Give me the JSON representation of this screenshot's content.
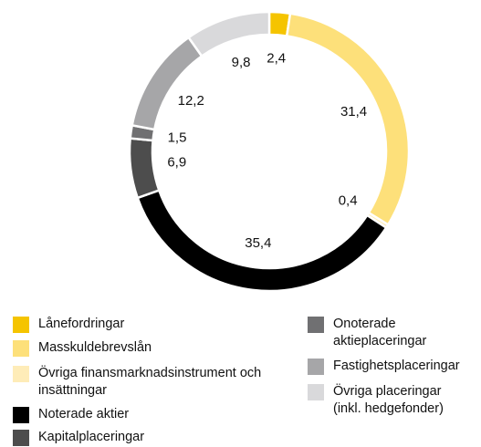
{
  "chart_data": {
    "type": "donut",
    "categories": [
      "Lånefordringar",
      "Masskuldebrevslån",
      "Övriga finansmarknadsinstrument och insättningar",
      "Noterade aktier",
      "Kapitalplaceringar",
      "Onoterade aktieplaceringar",
      "Fastighetsplaceringar",
      "Övriga placeringar (inkl. hedgefonder)"
    ],
    "values": [
      2.4,
      31.4,
      0.4,
      35.4,
      6.9,
      1.5,
      12.2,
      9.8
    ],
    "value_labels": [
      "2,4",
      "31,4",
      "0,4",
      "35,4",
      "6,9",
      "1,5",
      "12,2",
      "9,8"
    ],
    "colors": [
      "#f5c400",
      "#fde07a",
      "#feecb8",
      "#000000",
      "#4d4d4d",
      "#707072",
      "#a6a6a8",
      "#d9d9db"
    ],
    "legend": "bottom"
  }
}
